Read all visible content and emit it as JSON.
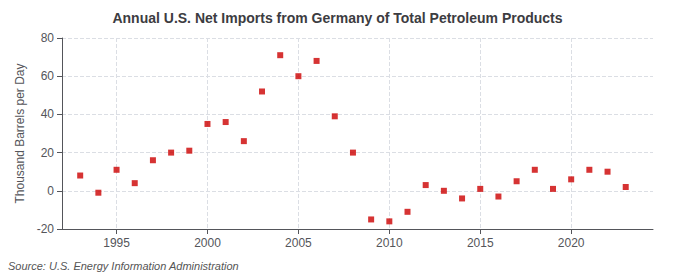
{
  "chart_data": {
    "type": "scatter",
    "title": "Annual U.S. Net Imports from Germany of Total Petroleum Products",
    "ylabel": "Thousand Barrels per Day",
    "annotation": "Source: U.S. Energy Information Administration",
    "x": [
      1993,
      1994,
      1995,
      1996,
      1997,
      1998,
      1999,
      2000,
      2001,
      2002,
      2003,
      2004,
      2005,
      2006,
      2007,
      2008,
      2009,
      2010,
      2011,
      2012,
      2013,
      2014,
      2015,
      2016,
      2017,
      2018,
      2019,
      2020,
      2021,
      2022,
      2023
    ],
    "values": [
      8,
      -1,
      11,
      4,
      16,
      20,
      21,
      35,
      36,
      26,
      52,
      71,
      60,
      68,
      39,
      20,
      -15,
      -16,
      -11,
      3,
      0,
      -4,
      1,
      -3,
      5,
      11,
      1,
      6,
      11,
      10,
      2
    ],
    "color": "#cc0000",
    "marker": "square",
    "xlim": [
      1992.0,
      2024.5
    ],
    "xticks": [
      1995,
      2000,
      2005,
      2010,
      2015,
      2020
    ],
    "ylim": [
      -20,
      80
    ],
    "yticks": [
      -20,
      0,
      20,
      40,
      60,
      80
    ],
    "grid": true
  }
}
